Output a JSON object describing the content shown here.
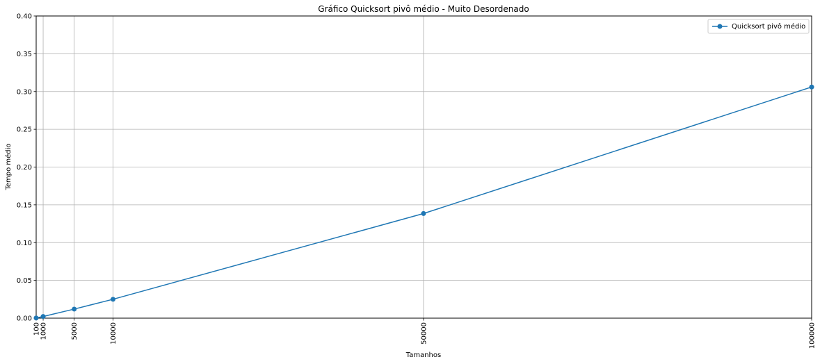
{
  "chart_data": {
    "type": "line",
    "title": "Gráfico Quicksort pivô médio - Muito Desordenado",
    "xlabel": "Tamanhos",
    "ylabel": "Tempo médio",
    "x": [
      100,
      1000,
      5000,
      10000,
      50000,
      100000
    ],
    "x_tick_labels": [
      "100",
      "1000",
      "5000",
      "10000",
      "50000",
      "100000"
    ],
    "xlim": [
      100,
      100000
    ],
    "ylim": [
      0,
      0.4
    ],
    "y_ticks": [
      0.0,
      0.05,
      0.1,
      0.15,
      0.2,
      0.25,
      0.3,
      0.35,
      0.4
    ],
    "y_tick_labels": [
      "0.00",
      "0.05",
      "0.10",
      "0.15",
      "0.20",
      "0.25",
      "0.30",
      "0.35",
      "0.40"
    ],
    "grid": true,
    "legend_position": "top-right",
    "series": [
      {
        "name": "Quicksort pivô médio",
        "values": [
          0.0002,
          0.0022,
          0.012,
          0.025,
          0.1385,
          0.306
        ],
        "color": "#1f77b4",
        "marker": "circle"
      }
    ]
  }
}
